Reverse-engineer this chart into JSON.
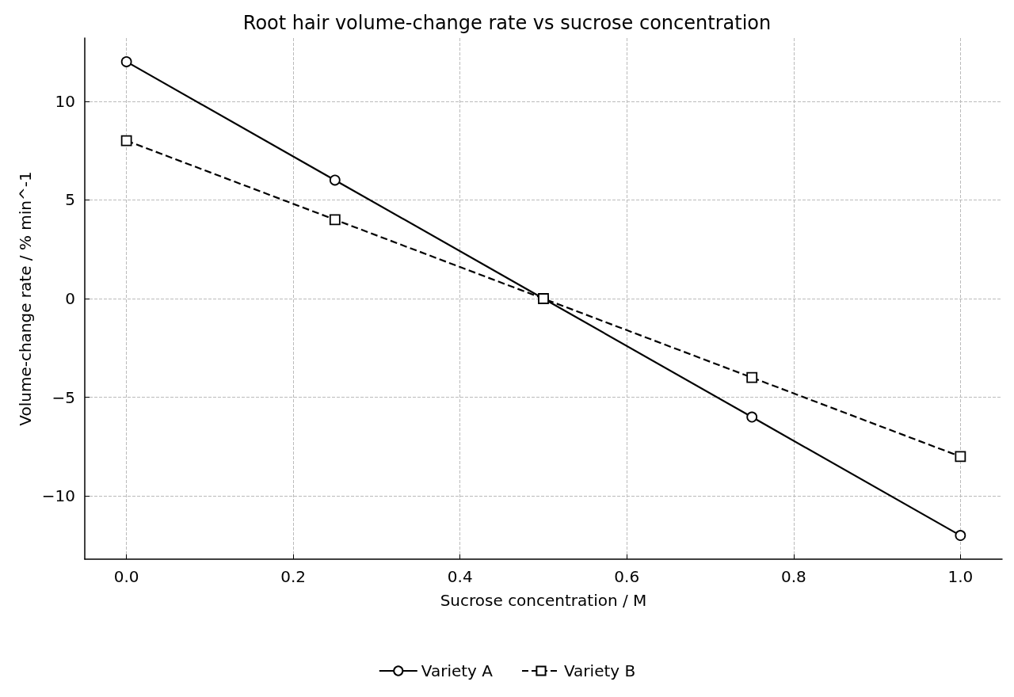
{
  "chart_data": {
    "type": "line",
    "title": "Root hair volume-change rate vs sucrose concentration",
    "xlabel": "Sucrose concentration / M",
    "ylabel": "Volume-change rate / % min^-1",
    "x": [
      0,
      0.25,
      0.5,
      0.75,
      1
    ],
    "series": [
      {
        "name": "Variety A",
        "color": "#000000",
        "values": [
          12,
          6,
          0,
          -6,
          -12
        ],
        "marker": "circle",
        "line_style": "solid"
      },
      {
        "name": "Variety B",
        "color": "#000000",
        "values": [
          8,
          4,
          0,
          -4,
          -8
        ],
        "marker": "square",
        "line_style": "dashed"
      }
    ],
    "xlim": [
      -0.05,
      1.05
    ],
    "xticks": [
      {
        "value": 0,
        "label": "0.0"
      },
      0.2,
      0.4,
      0.6,
      0.8,
      {
        "value": 1,
        "label": "1.0"
      }
    ],
    "ylim": [
      -13.2,
      13.2
    ],
    "yticks": [
      {
        "value": -10,
        "label": "−10"
      },
      {
        "value": -5,
        "label": "−5"
      },
      0,
      5,
      10
    ],
    "grid": true,
    "legend": "bottom"
  }
}
